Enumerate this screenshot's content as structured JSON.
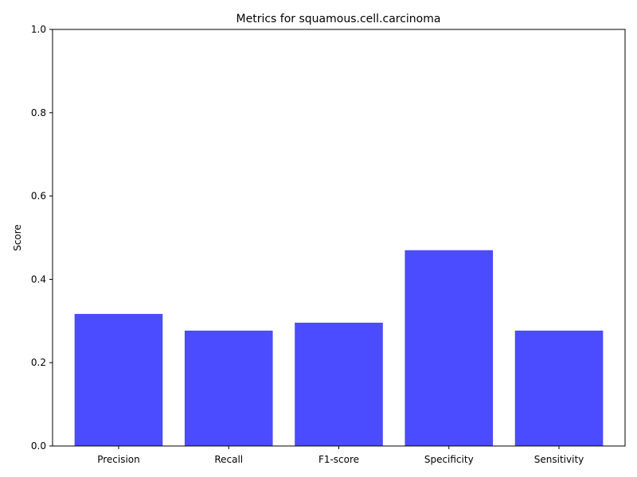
{
  "chart_data": {
    "type": "bar",
    "title": "Metrics for squamous.cell.carcinoma",
    "xlabel": "",
    "ylabel": "Score",
    "categories": [
      "Precision",
      "Recall",
      "F1-score",
      "Specificity",
      "Sensitivity"
    ],
    "values": [
      0.317,
      0.277,
      0.296,
      0.47,
      0.277
    ],
    "ylim": [
      0,
      1.0
    ],
    "yticks": [
      0.0,
      0.2,
      0.4,
      0.6,
      0.8,
      1.0
    ],
    "ytick_labels": [
      "0.0",
      "0.2",
      "0.4",
      "0.6",
      "0.8",
      "1.0"
    ],
    "bar_color": "#4b4bff",
    "grid": false,
    "legend": "none"
  }
}
